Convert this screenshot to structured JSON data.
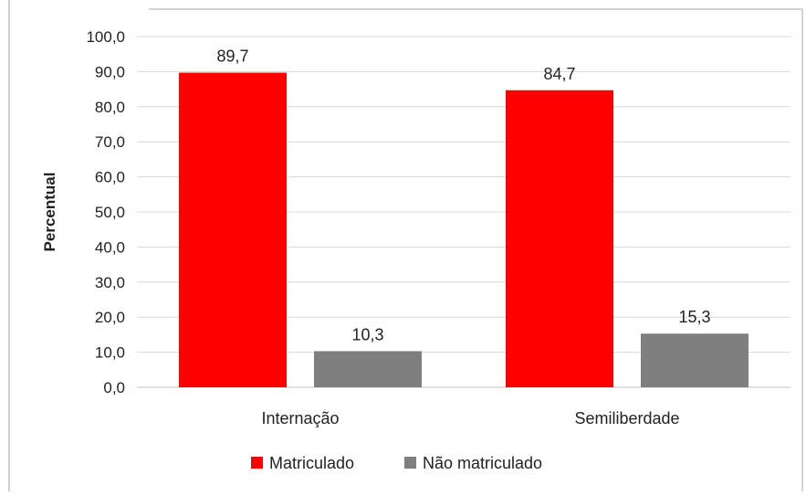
{
  "chart_data": {
    "type": "bar",
    "categories": [
      "Internação",
      "Semiliberdade"
    ],
    "series": [
      {
        "name": "Matriculado",
        "values": [
          89.7,
          84.7
        ],
        "labels": [
          "89,7",
          "84,7"
        ],
        "color": "#ff0000"
      },
      {
        "name": "Não matriculado",
        "values": [
          10.3,
          15.3
        ],
        "labels": [
          "10,3",
          "15,3"
        ],
        "color": "#7f7f7f"
      }
    ],
    "title": "",
    "xlabel": "",
    "ylabel": "Percentual",
    "ylim": [
      0,
      100
    ],
    "yticks": [
      0,
      10,
      20,
      30,
      40,
      50,
      60,
      70,
      80,
      90,
      100
    ],
    "ytick_labels": [
      "0,0",
      "10,0",
      "20,0",
      "30,0",
      "40,0",
      "50,0",
      "60,0",
      "70,0",
      "80,0",
      "90,0",
      "100,0"
    ],
    "grid": true,
    "legend_position": "bottom",
    "gridline_color": "#d9d9d9",
    "axis_color": "#bfbfbf"
  }
}
